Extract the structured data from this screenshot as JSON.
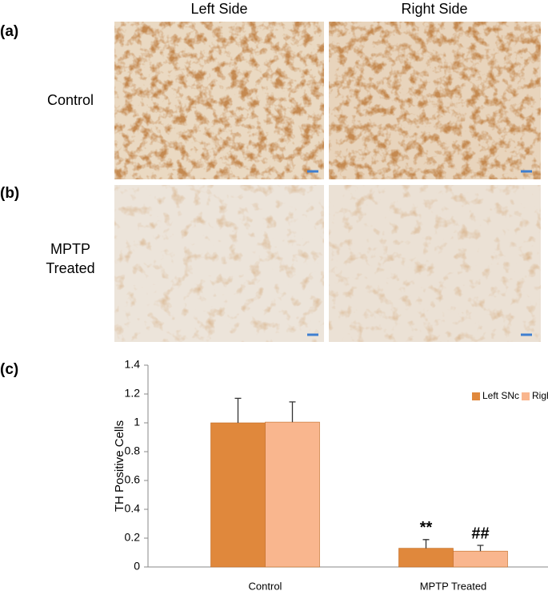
{
  "panel_labels": [
    "(a)",
    "(b)",
    "(c)"
  ],
  "column_headers": [
    "Left Side",
    "Right Side"
  ],
  "row_labels": [
    "Control",
    "MPTP Treated"
  ],
  "chart_data": {
    "type": "bar",
    "ylabel": "TH Positive Cells",
    "categories": [
      "Control",
      "MPTP Treated"
    ],
    "series": [
      {
        "name": "Left SNc",
        "color": "#e0883c",
        "values": [
          1.0,
          0.13
        ],
        "errors": [
          0.17,
          0.06
        ],
        "annotations": [
          null,
          "**"
        ]
      },
      {
        "name": "Right SNc",
        "color": "#f9b68e",
        "values": [
          1.005,
          0.11
        ],
        "errors": [
          0.14,
          0.04
        ],
        "annotations": [
          null,
          "##"
        ]
      }
    ],
    "ylim": [
      0,
      1.4
    ],
    "yticks": [
      0,
      0.2,
      0.4,
      0.6,
      0.8,
      1,
      1.2,
      1.4
    ],
    "legend": "top right",
    "grid": false
  }
}
